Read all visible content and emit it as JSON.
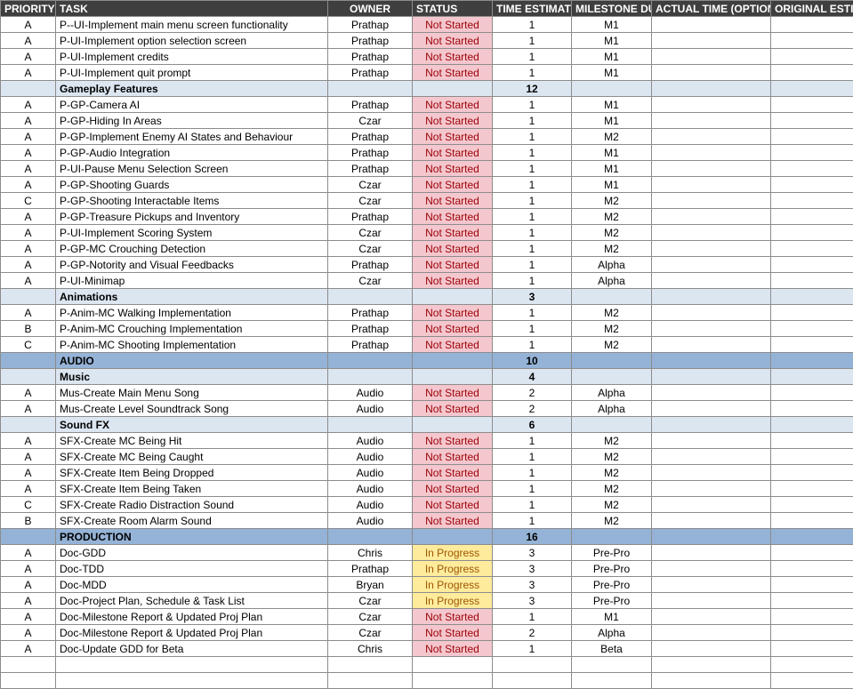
{
  "headers": {
    "priority": "PRIORITY",
    "task": "TASK",
    "owner": "OWNER",
    "status": "STATUS",
    "time_estimate": "TIME ESTIMATE (DAYS)",
    "milestone_due": "MILESTONE DUE",
    "actual_time": "ACTUAL TIME (OPTIONAL)",
    "original_estimate": "ORIGINAL ESTIMATE (OPTIONAL)"
  },
  "rows": [
    {
      "kind": "task",
      "priority": "A",
      "task": "P--UI-Implement main menu screen functionality",
      "owner": "Prathap",
      "status": "Not Started",
      "estimate": "1",
      "milestone": "M1"
    },
    {
      "kind": "task",
      "priority": "A",
      "task": "P-UI-Implement option selection screen",
      "owner": "Prathap",
      "status": "Not Started",
      "estimate": "1",
      "milestone": "M1"
    },
    {
      "kind": "task",
      "priority": "A",
      "task": "P-UI-Implement credits",
      "owner": "Prathap",
      "status": "Not Started",
      "estimate": "1",
      "milestone": "M1"
    },
    {
      "kind": "task",
      "priority": "A",
      "task": "P-UI-Implement quit prompt",
      "owner": "Prathap",
      "status": "Not Started",
      "estimate": "1",
      "milestone": "M1"
    },
    {
      "kind": "section",
      "task": "Gameplay Features",
      "estimate": "12"
    },
    {
      "kind": "task",
      "priority": "A",
      "task": "P-GP-Camera AI",
      "owner": "Prathap",
      "status": "Not Started",
      "estimate": "1",
      "milestone": "M1"
    },
    {
      "kind": "task",
      "priority": "A",
      "task": "P-GP-Hiding In Areas",
      "owner": "Czar",
      "status": "Not Started",
      "estimate": "1",
      "milestone": "M1"
    },
    {
      "kind": "task",
      "priority": "A",
      "task": "P-GP-Implement Enemy AI States and Behaviour",
      "owner": "Prathap",
      "status": "Not Started",
      "estimate": "1",
      "milestone": "M2"
    },
    {
      "kind": "task",
      "priority": "A",
      "task": "P-GP-Audio Integration",
      "owner": "Prathap",
      "status": "Not Started",
      "estimate": "1",
      "milestone": "M1"
    },
    {
      "kind": "task",
      "priority": "A",
      "task": "P-UI-Pause Menu Selection Screen",
      "owner": "Prathap",
      "status": "Not Started",
      "estimate": "1",
      "milestone": "M1"
    },
    {
      "kind": "task",
      "priority": "A",
      "task": "P-GP-Shooting Guards",
      "owner": "Czar",
      "status": "Not Started",
      "estimate": "1",
      "milestone": "M1"
    },
    {
      "kind": "task",
      "priority": "C",
      "task": "P-GP-Shooting Interactable Items",
      "owner": "Czar",
      "status": "Not Started",
      "estimate": "1",
      "milestone": "M2"
    },
    {
      "kind": "task",
      "priority": "A",
      "task": "P-GP-Treasure Pickups and Inventory",
      "owner": "Prathap",
      "status": "Not Started",
      "estimate": "1",
      "milestone": "M2"
    },
    {
      "kind": "task",
      "priority": "A",
      "task": "P-UI-Implement Scoring System",
      "owner": "Czar",
      "status": "Not Started",
      "estimate": "1",
      "milestone": "M2"
    },
    {
      "kind": "task",
      "priority": "A",
      "task": "P-GP-MC Crouching Detection",
      "owner": "Czar",
      "status": "Not Started",
      "estimate": "1",
      "milestone": "M2"
    },
    {
      "kind": "task",
      "priority": "A",
      "task": "P-GP-Notority and Visual Feedbacks",
      "owner": "Prathap",
      "status": "Not Started",
      "estimate": "1",
      "milestone": "Alpha"
    },
    {
      "kind": "task",
      "priority": "A",
      "task": "P-UI-Minimap",
      "owner": "Czar",
      "status": "Not Started",
      "estimate": "1",
      "milestone": "Alpha"
    },
    {
      "kind": "section",
      "task": "Animations",
      "estimate": "3"
    },
    {
      "kind": "task",
      "priority": "A",
      "task": "P-Anim-MC Walking Implementation",
      "owner": "Prathap",
      "status": "Not Started",
      "estimate": "1",
      "milestone": "M2"
    },
    {
      "kind": "task",
      "priority": "B",
      "task": "P-Anim-MC Crouching Implementation",
      "owner": "Prathap",
      "status": "Not Started",
      "estimate": "1",
      "milestone": "M2"
    },
    {
      "kind": "task",
      "priority": "C",
      "task": "P-Anim-MC Shooting Implementation",
      "owner": "Prathap",
      "status": "Not Started",
      "estimate": "1",
      "milestone": "M2"
    },
    {
      "kind": "major",
      "task": "AUDIO",
      "estimate": "10"
    },
    {
      "kind": "section",
      "task": "Music",
      "estimate": "4"
    },
    {
      "kind": "task",
      "priority": "A",
      "task": "Mus-Create Main Menu Song",
      "owner": "Audio",
      "status": "Not Started",
      "estimate": "2",
      "milestone": "Alpha"
    },
    {
      "kind": "task",
      "priority": "A",
      "task": "Mus-Create Level Soundtrack Song",
      "owner": "Audio",
      "status": "Not Started",
      "estimate": "2",
      "milestone": "Alpha"
    },
    {
      "kind": "section",
      "task": "Sound FX",
      "estimate": "6"
    },
    {
      "kind": "task",
      "priority": "A",
      "task": "SFX-Create MC Being Hit",
      "owner": "Audio",
      "status": "Not Started",
      "estimate": "1",
      "milestone": "M2"
    },
    {
      "kind": "task",
      "priority": "A",
      "task": "SFX-Create MC Being Caught",
      "owner": "Audio",
      "status": "Not Started",
      "estimate": "1",
      "milestone": "M2"
    },
    {
      "kind": "task",
      "priority": "A",
      "task": "SFX-Create Item Being Dropped",
      "owner": "Audio",
      "status": "Not Started",
      "estimate": "1",
      "milestone": "M2"
    },
    {
      "kind": "task",
      "priority": "A",
      "task": "SFX-Create Item Being Taken",
      "owner": "Audio",
      "status": "Not Started",
      "estimate": "1",
      "milestone": "M2"
    },
    {
      "kind": "task",
      "priority": "C",
      "task": "SFX-Create Radio Distraction Sound",
      "owner": "Audio",
      "status": "Not Started",
      "estimate": "1",
      "milestone": "M2"
    },
    {
      "kind": "task",
      "priority": "B",
      "task": "SFX-Create Room Alarm Sound",
      "owner": "Audio",
      "status": "Not Started",
      "estimate": "1",
      "milestone": "M2"
    },
    {
      "kind": "major",
      "task": "PRODUCTION",
      "estimate": "16"
    },
    {
      "kind": "task",
      "priority": "A",
      "task": "Doc-GDD",
      "owner": "Chris",
      "status": "In Progress",
      "estimate": "3",
      "milestone": "Pre-Pro"
    },
    {
      "kind": "task",
      "priority": "A",
      "task": "Doc-TDD",
      "owner": "Prathap",
      "status": "In Progress",
      "estimate": "3",
      "milestone": "Pre-Pro"
    },
    {
      "kind": "task",
      "priority": "A",
      "task": "Doc-MDD",
      "owner": "Bryan",
      "status": "In Progress",
      "estimate": "3",
      "milestone": "Pre-Pro"
    },
    {
      "kind": "task",
      "priority": "A",
      "task": "Doc-Project Plan, Schedule & Task List",
      "owner": "Czar",
      "status": "In Progress",
      "estimate": "3",
      "milestone": "Pre-Pro"
    },
    {
      "kind": "task",
      "priority": "A",
      "task": "Doc-Milestone Report & Updated Proj Plan",
      "owner": "Czar",
      "status": "Not Started",
      "estimate": "1",
      "milestone": "M1"
    },
    {
      "kind": "task",
      "priority": "A",
      "task": "Doc-Milestone Report & Updated Proj Plan",
      "owner": "Czar",
      "status": "Not Started",
      "estimate": "2",
      "milestone": "Alpha"
    },
    {
      "kind": "task",
      "priority": "A",
      "task": "Doc-Update GDD for Beta",
      "owner": "Chris",
      "status": "Not Started",
      "estimate": "1",
      "milestone": "Beta"
    },
    {
      "kind": "blank"
    },
    {
      "kind": "blank"
    }
  ]
}
